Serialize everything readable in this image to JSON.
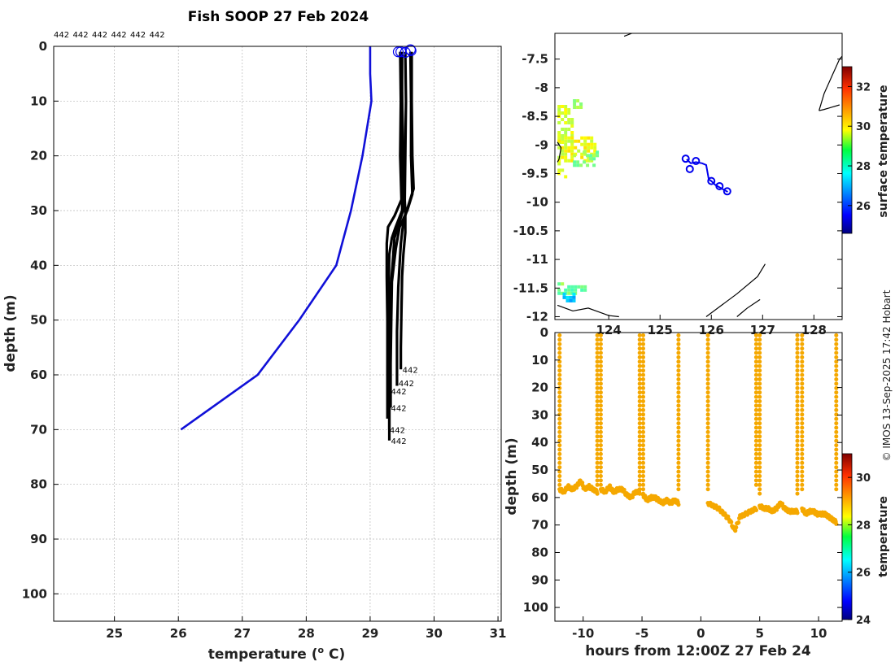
{
  "title": "Fish SOOP 27 Feb 2024",
  "credit": "© IMOS 13-Sep-2025 17:42 Hobart",
  "colors": {
    "climatology": "#1010d8",
    "profiles": "#000000",
    "track": "#0000ee",
    "surface_point": "#f5a800"
  },
  "chart_data": [
    {
      "id": "profiles",
      "type": "line",
      "xlabel": "temperature (",
      "xlabel_unit": "o",
      "xlabel_tail": " C)",
      "ylabel": "depth (m)",
      "xlim": [
        24.05,
        31.05
      ],
      "ylim": [
        105,
        0
      ],
      "xticks": [
        "25",
        "26",
        "27",
        "28",
        "29",
        "30",
        "31"
      ],
      "yticks": [
        "0",
        "10",
        "20",
        "30",
        "40",
        "50",
        "60",
        "70",
        "80",
        "90",
        "100"
      ],
      "grid": true,
      "top_labels": [
        "442",
        "442",
        "442",
        "442",
        "442",
        "442"
      ],
      "climatology": {
        "name": "climatology",
        "temperature": [
          29.0,
          29.0,
          29.02,
          28.88,
          28.7,
          28.47,
          27.89,
          27.24,
          26.04
        ],
        "depth": [
          0,
          5,
          10,
          20,
          30,
          40,
          50,
          60,
          70
        ]
      },
      "profile_end_labels": [
        {
          "text": "442",
          "t": 29.48,
          "d": 59
        },
        {
          "text": "442",
          "t": 29.42,
          "d": 61.5
        },
        {
          "text": "442",
          "t": 29.3,
          "d": 63
        },
        {
          "text": "442",
          "t": 29.3,
          "d": 66
        },
        {
          "text": "442",
          "t": 29.28,
          "d": 70
        },
        {
          "text": "442",
          "t": 29.3,
          "d": 72
        }
      ],
      "surface_markers": [
        {
          "t": 29.44,
          "d": 1.0
        },
        {
          "t": 29.48,
          "d": 1.0
        },
        {
          "t": 29.55,
          "d": 1.1
        },
        {
          "t": 29.63,
          "d": 0.6
        },
        {
          "t": 29.64,
          "d": 0.8
        }
      ],
      "profiles": [
        {
          "depth": [
            1,
            10,
            20,
            28,
            31,
            33,
            36,
            42,
            50,
            60,
            68
          ],
          "temperature": [
            29.47,
            29.48,
            29.47,
            29.49,
            29.38,
            29.28,
            29.26,
            29.26,
            29.27,
            29.27,
            29.27
          ]
        },
        {
          "depth": [
            1,
            10,
            20,
            30,
            33,
            35,
            38,
            43,
            50,
            60,
            70
          ],
          "temperature": [
            29.5,
            29.5,
            29.52,
            29.5,
            29.4,
            29.34,
            29.3,
            29.29,
            29.3,
            29.3,
            29.3
          ]
        },
        {
          "depth": [
            1,
            10,
            20,
            29,
            32,
            35,
            40,
            47,
            55,
            65,
            72
          ],
          "temperature": [
            29.55,
            29.56,
            29.55,
            29.54,
            29.46,
            29.38,
            29.35,
            29.3,
            29.3,
            29.3,
            29.3
          ]
        },
        {
          "depth": [
            1,
            10,
            20,
            27,
            30,
            33,
            37,
            43,
            50,
            58,
            66
          ],
          "temperature": [
            29.63,
            29.64,
            29.64,
            29.66,
            29.58,
            29.46,
            29.4,
            29.34,
            29.33,
            29.32,
            29.32
          ]
        },
        {
          "depth": [
            1,
            10,
            20,
            26,
            29,
            32,
            36,
            44,
            52,
            60,
            62
          ],
          "temperature": [
            29.65,
            29.65,
            29.66,
            29.68,
            29.6,
            29.52,
            29.48,
            29.44,
            29.42,
            29.42,
            29.42
          ]
        },
        {
          "depth": [
            1,
            10,
            20,
            30,
            34,
            38,
            42,
            48,
            55,
            59
          ],
          "temperature": [
            29.48,
            29.5,
            29.5,
            29.55,
            29.55,
            29.52,
            29.5,
            29.49,
            29.48,
            29.48
          ]
        }
      ]
    },
    {
      "id": "map",
      "type": "heatmap",
      "colorbar_label": "surface temperature",
      "xlim": [
        122.95,
        128.55
      ],
      "ylim": [
        -12.05,
        -7.05
      ],
      "xticks": [
        "124",
        "125",
        "126",
        "127",
        "128"
      ],
      "yticks": [
        "-7.5",
        "-8",
        "-8.5",
        "-9",
        "-9.5",
        "-10",
        "-10.5",
        "-11",
        "-11.5",
        "-12"
      ],
      "cbar_range": [
        24.6,
        33.0
      ],
      "cbar_ticks": [
        "26",
        "28",
        "30",
        "32"
      ],
      "track": {
        "lon": [
          125.52,
          125.6,
          125.7,
          125.82,
          125.9,
          125.95,
          126.0,
          126.08,
          126.16,
          126.24,
          126.32
        ],
        "lat": [
          -9.25,
          -9.32,
          -9.3,
          -9.32,
          -9.35,
          -9.6,
          -9.63,
          -9.7,
          -9.74,
          -9.78,
          -9.82
        ]
      },
      "track_markers": [
        {
          "lon": 125.5,
          "lat": -9.24
        },
        {
          "lon": 125.58,
          "lat": -9.42
        },
        {
          "lon": 125.7,
          "lat": -9.28
        },
        {
          "lon": 126.0,
          "lat": -9.63
        },
        {
          "lon": 126.16,
          "lat": -9.72
        },
        {
          "lon": 126.31,
          "lat": -9.81
        }
      ],
      "sst_patches": [
        {
          "lon": [
            123.0,
            123.3
          ],
          "lat": [
            -8.3,
            -8.95
          ],
          "t": 29.5
        },
        {
          "lon": [
            123.0,
            123.75
          ],
          "lat": [
            -8.85,
            -9.3
          ],
          "t": 29.7
        },
        {
          "lon": [
            123.3,
            123.75
          ],
          "lat": [
            -9.1,
            -9.35
          ],
          "t": 28.9
        },
        {
          "lon": [
            123.3,
            123.45
          ],
          "lat": [
            -8.2,
            -8.35
          ],
          "t": 29.2
        },
        {
          "lon": [
            123.0,
            123.15
          ],
          "lat": [
            -9.3,
            -9.55
          ],
          "t": 29.9
        },
        {
          "lon": [
            123.0,
            123.55
          ],
          "lat": [
            -11.45,
            -11.62
          ],
          "t": 28.6
        },
        {
          "lon": [
            123.1,
            123.3
          ],
          "lat": [
            -11.58,
            -11.75
          ],
          "t": 27.4
        },
        {
          "lon": [
            123.0,
            123.1
          ],
          "lat": [
            -11.4,
            -11.5
          ],
          "t": 29.0
        }
      ],
      "coastlines": [
        {
          "lon": [
            123.0,
            123.07,
            123.03,
            123.0
          ],
          "lat": [
            -8.95,
            -9.05,
            -9.25,
            -9.3
          ]
        },
        {
          "lon": [
            128.1,
            128.2,
            128.35,
            128.5,
            128.55
          ],
          "lat": [
            -8.4,
            -8.1,
            -7.8,
            -7.5,
            -7.45
          ]
        },
        {
          "lon": [
            128.1,
            128.2,
            128.35,
            128.5
          ],
          "lat": [
            -8.4,
            -8.38,
            -8.34,
            -8.3
          ]
        },
        {
          "lon": [
            125.9,
            126.2,
            126.5,
            126.9,
            127.05
          ],
          "lat": [
            -12.0,
            -11.8,
            -11.6,
            -11.3,
            -11.08
          ]
        },
        {
          "lon": [
            126.5,
            126.7,
            126.95
          ],
          "lat": [
            -12.0,
            -11.85,
            -11.7
          ]
        },
        {
          "lon": [
            123.0,
            123.3,
            123.6,
            124.0,
            124.2
          ],
          "lat": [
            -11.8,
            -11.9,
            -11.85,
            -11.98,
            -12.0
          ]
        },
        {
          "lon": [
            124.3,
            124.45
          ],
          "lat": [
            -7.1,
            -7.05
          ]
        }
      ]
    },
    {
      "id": "timeseries",
      "type": "scatter",
      "xlabel": "hours from 12:00Z 27 Feb 24",
      "ylabel": "depth (m)",
      "colorbar_label": "temperature",
      "xlim": [
        -12.4,
        12.0
      ],
      "ylim": [
        105,
        0
      ],
      "xticks": [
        "-10",
        "-5",
        "0",
        "5",
        "10"
      ],
      "yticks": [
        "0",
        "10",
        "20",
        "30",
        "40",
        "50",
        "60",
        "70",
        "80",
        "90",
        "100"
      ],
      "cbar_range": [
        24,
        31
      ],
      "cbar_ticks": [
        "24",
        "26",
        "28",
        "30"
      ],
      "points_temperature": 29.4,
      "dives": [
        {
          "start": -12.0,
          "end": -8.8,
          "bottom": [
            57,
            58,
            56,
            57,
            56,
            54,
            57,
            56,
            57,
            58
          ]
        },
        {
          "start": -8.5,
          "end": -5.2,
          "bottom": [
            57,
            58,
            56,
            58,
            57,
            57,
            59,
            60,
            58,
            58
          ]
        },
        {
          "start": -4.9,
          "end": -1.9,
          "bottom": [
            59,
            61,
            60,
            60,
            61,
            62,
            61,
            62,
            61,
            62
          ]
        },
        {
          "start": 0.6,
          "end": 4.7,
          "bottom": [
            62,
            63,
            64,
            66,
            68,
            72,
            67,
            66,
            65,
            64
          ]
        },
        {
          "start": 5.0,
          "end": 8.2,
          "bottom": [
            63,
            64,
            64,
            65,
            64,
            62,
            64,
            65,
            65,
            65
          ]
        },
        {
          "start": 8.6,
          "end": 11.5,
          "bottom": [
            64,
            66,
            65,
            65,
            66,
            66,
            66,
            67,
            68,
            69
          ]
        }
      ],
      "surface_turnarounds": [
        -8.8,
        -8.5,
        -5.2,
        -4.9,
        -1.9,
        0.6,
        4.7,
        5.0,
        8.2,
        8.6,
        11.5
      ]
    }
  ]
}
